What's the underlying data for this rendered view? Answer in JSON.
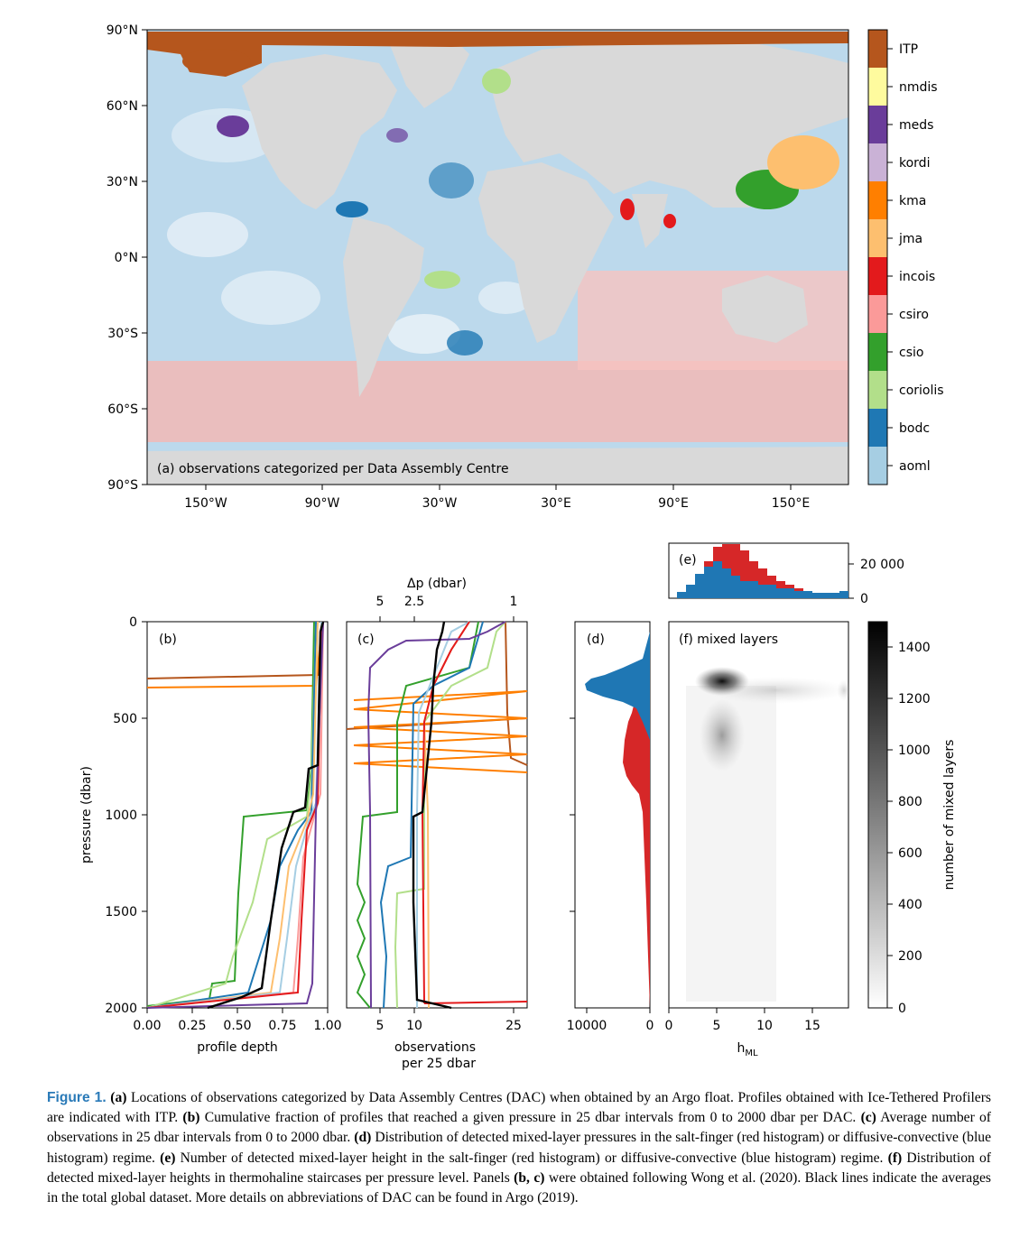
{
  "map": {
    "panel_label": "(a)  observations categorized per Data Assembly Centre",
    "lat_ticks": [
      "90°N",
      "60°N",
      "30°N",
      "0°N",
      "30°S",
      "60°S",
      "90°S"
    ],
    "lon_ticks": [
      "150°W",
      "90°W",
      "30°W",
      "30°E",
      "90°E",
      "150°E"
    ],
    "legend": [
      {
        "name": "ITP",
        "color": "#b5561d"
      },
      {
        "name": "nmdis",
        "color": "#fefb9e"
      },
      {
        "name": "meds",
        "color": "#6a3d9a"
      },
      {
        "name": "kordi",
        "color": "#cab2d6"
      },
      {
        "name": "kma",
        "color": "#ff7f00"
      },
      {
        "name": "jma",
        "color": "#fdbf6f"
      },
      {
        "name": "incois",
        "color": "#e31a1c"
      },
      {
        "name": "csiro",
        "color": "#fb9a99"
      },
      {
        "name": "csio",
        "color": "#33a02c"
      },
      {
        "name": "coriolis",
        "color": "#b2df8a"
      },
      {
        "name": "bodc",
        "color": "#1f78b4"
      },
      {
        "name": "aoml",
        "color": "#a6cee3"
      }
    ]
  },
  "panel_b": {
    "label": "(b)",
    "xlabel": "profile depth",
    "ylabel": "pressure (dbar)",
    "xticks": [
      "0.00",
      "0.25",
      "0.50",
      "0.75",
      "1.00"
    ],
    "yticks": [
      "0",
      "500",
      "1000",
      "1500",
      "2000"
    ]
  },
  "panel_c": {
    "label": "(c)",
    "xlabel_line1": "observations",
    "xlabel_line2": "per 25 dbar",
    "top_label": "Δp (dbar)",
    "top_ticks": [
      "5",
      "2.5",
      "1"
    ],
    "xticks": [
      "5",
      "10",
      "25"
    ]
  },
  "panel_d": {
    "label": "(d)",
    "xticks": [
      "10000",
      "0"
    ]
  },
  "panel_e": {
    "label": "(e)",
    "yticks": [
      "20 000",
      "0"
    ]
  },
  "panel_f": {
    "label": "(f) mixed layers",
    "xlabel": "h",
    "xlabel_sub": "ML",
    "xticks": [
      "0",
      "5",
      "10",
      "15"
    ],
    "colorbar_label": "number of mixed layers",
    "colorbar_ticks": [
      "1400",
      "1200",
      "1000",
      "800",
      "600",
      "400",
      "200",
      "0"
    ]
  },
  "caption": {
    "fig_label": "Figure 1.",
    "p1": " (a)",
    "t1": " Locations of observations categorized by Data Assembly Centres (DAC) when obtained by an Argo float. Profiles obtained with Ice-Tethered Profilers are indicated with ITP. ",
    "p2": "(b)",
    "t2": " Cumulative fraction of profiles that reached a given pressure in 25 dbar intervals from 0 to 2000 dbar per DAC. ",
    "p3": "(c)",
    "t3": " Average number of observations in 25 dbar intervals from 0 to 2000 dbar. ",
    "p4": "(d)",
    "t4": " Distribution of detected mixed-layer pressures in the salt-finger (red histogram) or diffusive-convective (blue histogram) regime. ",
    "p5": "(e)",
    "t5": " Number of detected mixed-layer height in the salt-finger (red histogram) or diffusive-convective (blue histogram) regime. ",
    "p6": "(f)",
    "t6": " Distribution of detected mixed-layer heights in thermohaline staircases per pressure level. Panels ",
    "p7": "(b, c)",
    "t7": " were obtained following Wong et al. (2020). Black lines indicate the averages in the total global dataset. More details on abbreviations of DAC can be found in Argo (2019)."
  }
}
